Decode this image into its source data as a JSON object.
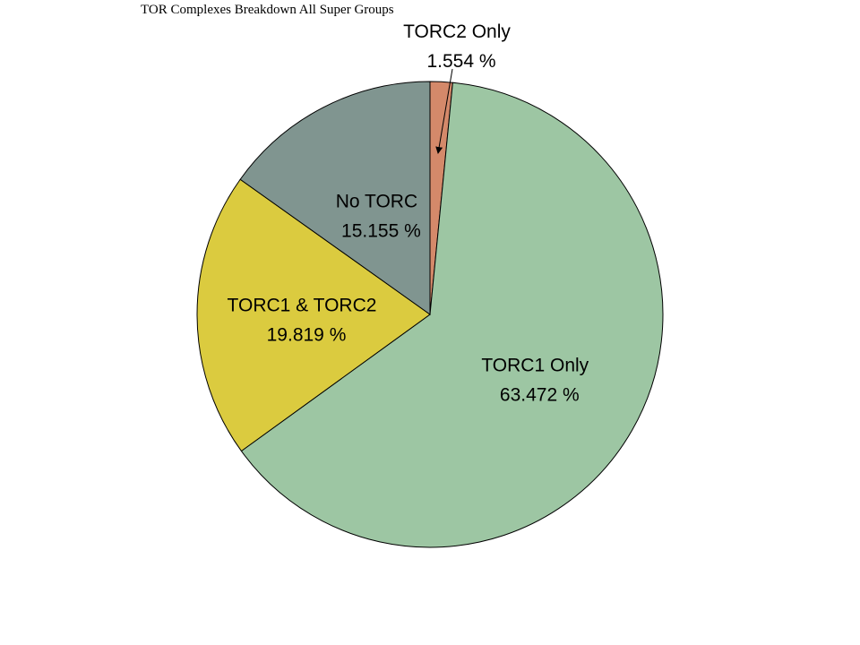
{
  "chart_data": {
    "type": "pie",
    "title": "TOR Complexes Breakdown All Super Groups",
    "slices": [
      {
        "label": "TORC2 Only",
        "value": 1.554,
        "value_text": "1.554 %",
        "color": "#d4896a"
      },
      {
        "label": "TORC1 Only",
        "value": 63.472,
        "value_text": "63.472 %",
        "color": "#9dc6a3"
      },
      {
        "label": "TORC1 & TORC2",
        "value": 19.819,
        "value_text": "19.819 %",
        "color": "#dbcb3f"
      },
      {
        "label": "No TORC",
        "value": 15.155,
        "value_text": "15.155 %",
        "color": "#809590"
      }
    ],
    "start_angle": "12 o'clock",
    "direction": "clockwise",
    "legend": "none"
  }
}
